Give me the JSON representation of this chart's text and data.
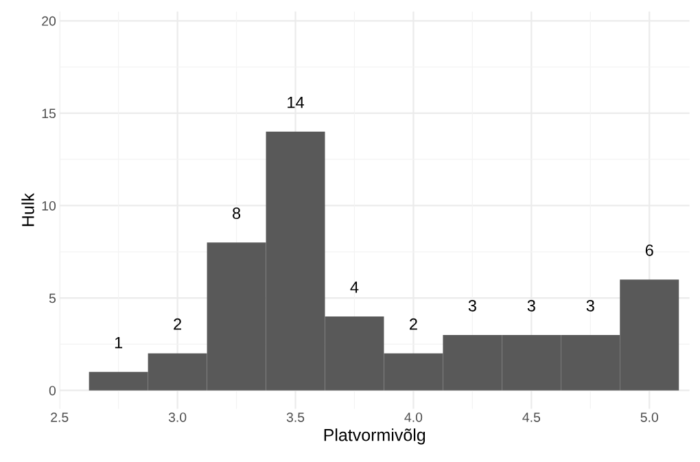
{
  "chart_data": {
    "type": "histogram",
    "xlabel": "Platvormivõlg",
    "ylabel": "Hulk",
    "bins": [
      2.625,
      2.875,
      3.125,
      3.375,
      3.625,
      3.875,
      4.125,
      4.375,
      4.625,
      4.875,
      5.125
    ],
    "values": [
      1,
      2,
      8,
      14,
      4,
      2,
      3,
      3,
      3,
      6
    ],
    "color": "#595959",
    "data_labels": true,
    "grid": true,
    "xlim": [
      2.5,
      5.17
    ],
    "xticks": [
      {
        "value": 2.5,
        "label": "2.5"
      },
      {
        "value": 3.0,
        "label": "3.0"
      },
      {
        "value": 3.5,
        "label": "3.5"
      },
      {
        "value": 4.0,
        "label": "4.0"
      },
      {
        "value": 4.5,
        "label": "4.5"
      },
      {
        "value": 5.0,
        "label": "5.0"
      }
    ],
    "ylim": [
      -1,
      20.5
    ],
    "yticks": [
      0,
      5,
      10,
      15,
      20
    ]
  }
}
